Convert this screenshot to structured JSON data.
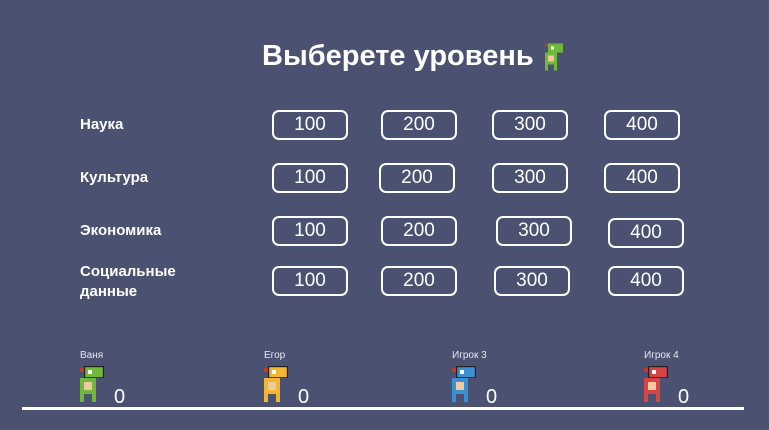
{
  "title": "Выберете уровень",
  "categories": [
    {
      "label": "Наука",
      "values": [
        "100",
        "200",
        "300",
        "400"
      ]
    },
    {
      "label": "Культура",
      "values": [
        "100",
        "200",
        "300",
        "400"
      ]
    },
    {
      "label": "Экономика",
      "values": [
        "100",
        "200",
        "300",
        "400"
      ]
    },
    {
      "label": "Социальные данные",
      "values": [
        "100",
        "200",
        "300",
        "400"
      ]
    }
  ],
  "players": [
    {
      "name": "Ваня",
      "score": "0",
      "color": "#6fb83a"
    },
    {
      "name": "Егор",
      "score": "0",
      "color": "#f2b631"
    },
    {
      "name": "Игрок 3",
      "score": "0",
      "color": "#3c8fd0"
    },
    {
      "name": "Игрок 4",
      "score": "0",
      "color": "#d64545"
    }
  ]
}
